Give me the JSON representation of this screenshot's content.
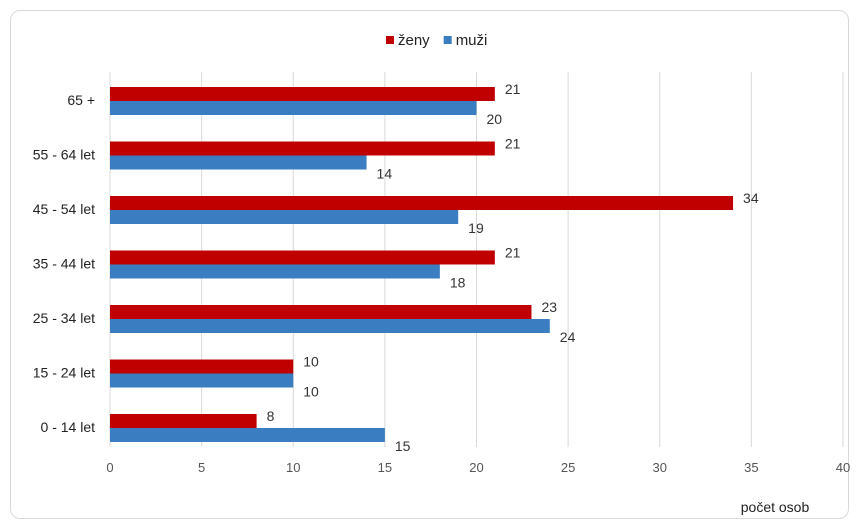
{
  "chart_data": {
    "type": "bar",
    "orientation": "horizontal",
    "categories": [
      "65 +",
      "55 - 64 let",
      "45 - 54 let",
      "35 - 44 let",
      "25 - 34 let",
      "15 - 24 let",
      "0 - 14 let"
    ],
    "series": [
      {
        "name": "ženy",
        "color": "#c00000",
        "values": [
          21,
          21,
          34,
          21,
          23,
          10,
          8
        ]
      },
      {
        "name": "muži",
        "color": "#3a7dc0",
        "values": [
          20,
          14,
          19,
          18,
          24,
          10,
          15
        ]
      }
    ],
    "xlabel": "počet osob",
    "xlim": [
      0,
      40
    ],
    "xticks": [
      0,
      5,
      10,
      15,
      20,
      25,
      30,
      35,
      40
    ],
    "grid": true,
    "legend_position": "top-center",
    "data_labels": true
  }
}
